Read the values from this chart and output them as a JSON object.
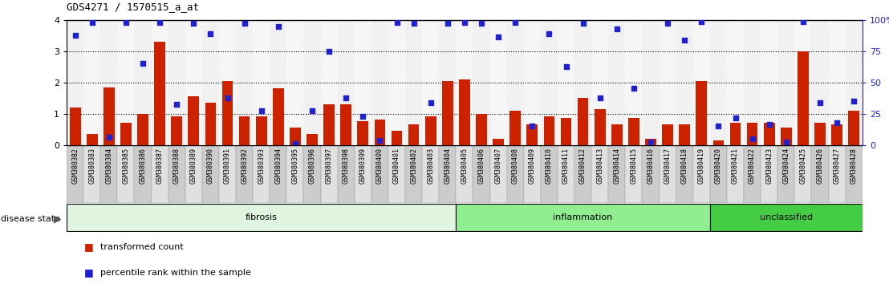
{
  "title": "GDS4271 / 1570515_a_at",
  "samples": [
    "GSM380382",
    "GSM380383",
    "GSM380384",
    "GSM380385",
    "GSM380386",
    "GSM380387",
    "GSM380388",
    "GSM380389",
    "GSM380390",
    "GSM380391",
    "GSM380392",
    "GSM380393",
    "GSM380394",
    "GSM380395",
    "GSM380396",
    "GSM380397",
    "GSM380398",
    "GSM380399",
    "GSM380400",
    "GSM380401",
    "GSM380402",
    "GSM380403",
    "GSM380404",
    "GSM380405",
    "GSM380406",
    "GSM380407",
    "GSM380408",
    "GSM380409",
    "GSM380410",
    "GSM380411",
    "GSM380412",
    "GSM380413",
    "GSM380414",
    "GSM380415",
    "GSM380416",
    "GSM380417",
    "GSM380418",
    "GSM380419",
    "GSM380420",
    "GSM380421",
    "GSM380422",
    "GSM380423",
    "GSM380424",
    "GSM380425",
    "GSM380426",
    "GSM380427",
    "GSM380428"
  ],
  "red_values": [
    1.2,
    0.35,
    1.85,
    0.72,
    1.0,
    3.3,
    0.9,
    1.55,
    1.35,
    2.05,
    0.9,
    0.9,
    1.8,
    0.55,
    0.35,
    1.3,
    1.3,
    0.75,
    0.8,
    0.45,
    0.65,
    0.9,
    2.05,
    2.1,
    1.0,
    0.2,
    1.1,
    0.65,
    0.9,
    0.85,
    1.5,
    1.15,
    0.65,
    0.85,
    0.2,
    0.65,
    0.65,
    2.05,
    0.15,
    0.7,
    0.7,
    0.7,
    0.55,
    3.0,
    0.7,
    0.65,
    1.1
  ],
  "blue_values": [
    3.5,
    3.92,
    0.25,
    3.92,
    2.6,
    3.92,
    1.3,
    3.88,
    3.55,
    1.5,
    3.88,
    1.1,
    3.78,
    0.05,
    1.1,
    3.0,
    1.5,
    0.9,
    0.15,
    3.92,
    3.88,
    1.35,
    3.88,
    3.92,
    3.88,
    3.45,
    3.92,
    0.6,
    3.55,
    2.5,
    3.88,
    1.5,
    3.72,
    1.8,
    0.1,
    3.88,
    3.35,
    3.95,
    0.6,
    0.85,
    0.2,
    0.65,
    0.1,
    3.95,
    1.35,
    0.7,
    1.4
  ],
  "group_configs": [
    {
      "start": 0,
      "end": 23,
      "label": "fibrosis",
      "color": "#dff5df"
    },
    {
      "start": 23,
      "end": 38,
      "label": "inflammation",
      "color": "#90ee90"
    },
    {
      "start": 38,
      "end": 47,
      "label": "unclassified",
      "color": "#44cc44"
    }
  ],
  "ylim_left": [
    0,
    4
  ],
  "ylim_right": [
    0,
    100
  ],
  "yticks_left": [
    0,
    1,
    2,
    3,
    4
  ],
  "yticks_right": [
    0,
    25,
    50,
    75,
    100
  ],
  "bar_color": "#cc2200",
  "dot_color": "#2222cc",
  "background_color": "#ffffff",
  "tick_bg_color": "#d8d8d8",
  "disease_state_label": "disease state"
}
